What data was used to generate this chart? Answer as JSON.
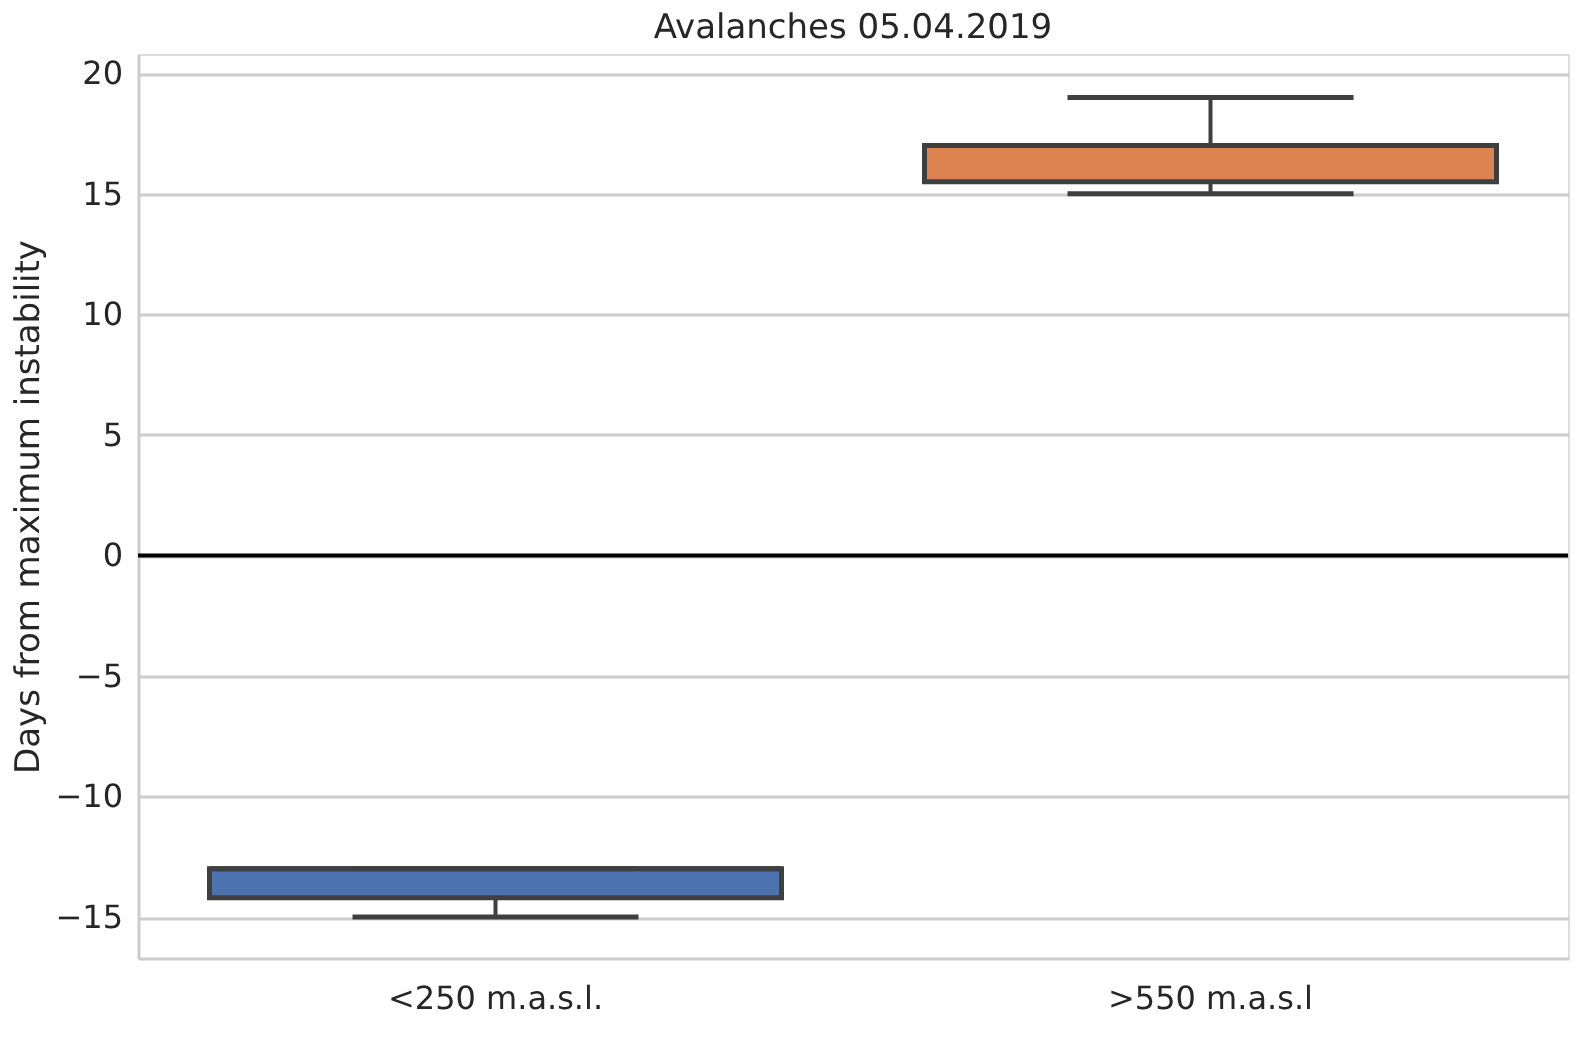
{
  "chart_data": {
    "type": "box",
    "title": "Avalanches 05.04.2019",
    "ylabel": "Days from maximum instability",
    "categories": [
      "<250 m.a.s.l.",
      ">550 m.a.s.l"
    ],
    "boxes": [
      {
        "low": -15,
        "q1": -14.2,
        "median": -13,
        "q3": -13,
        "high": -13
      },
      {
        "low": 15,
        "q1": 15.5,
        "median": 17,
        "q3": 17,
        "high": 19
      }
    ],
    "colors": [
      "#4c72b0",
      "#dd8452"
    ],
    "ylim": [
      -16.7,
      20.8
    ],
    "yticks": [
      -15,
      -10,
      -5,
      0,
      5,
      10,
      15,
      20
    ],
    "grid": "y",
    "ref_lines": [
      {
        "axis": "y",
        "value": 0,
        "color": "#000000"
      }
    ]
  }
}
